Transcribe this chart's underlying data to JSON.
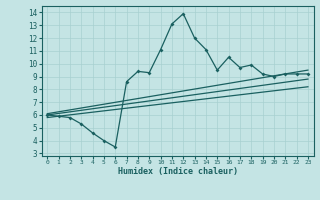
{
  "xlabel": "Humidex (Indice chaleur)",
  "ylabel": "",
  "xlim": [
    -0.5,
    23.5
  ],
  "ylim": [
    2.8,
    14.5
  ],
  "xticks": [
    0,
    1,
    2,
    3,
    4,
    5,
    6,
    7,
    8,
    9,
    10,
    11,
    12,
    13,
    14,
    15,
    16,
    17,
    18,
    19,
    20,
    21,
    22,
    23
  ],
  "yticks": [
    3,
    4,
    5,
    6,
    7,
    8,
    9,
    10,
    11,
    12,
    13,
    14
  ],
  "bg_color": "#c4e4e4",
  "grid_color": "#a8d0d0",
  "line_color": "#1a6060",
  "line1_x": [
    0,
    1,
    2,
    3,
    4,
    5,
    6,
    7,
    8,
    9,
    10,
    11,
    12,
    13,
    14,
    15,
    16,
    17,
    18,
    19,
    20,
    21,
    22,
    23
  ],
  "line1_y": [
    6.0,
    5.9,
    5.8,
    5.3,
    4.6,
    4.0,
    3.5,
    8.6,
    9.4,
    9.3,
    11.1,
    13.1,
    13.9,
    12.0,
    11.1,
    9.5,
    10.5,
    9.7,
    9.9,
    9.2,
    9.0,
    9.2,
    9.2,
    9.2
  ],
  "line2_x": [
    0,
    23
  ],
  "line2_y": [
    6.1,
    9.5
  ],
  "line3_x": [
    0,
    23
  ],
  "line3_y": [
    6.0,
    8.8
  ],
  "line4_x": [
    0,
    23
  ],
  "line4_y": [
    5.8,
    8.2
  ]
}
